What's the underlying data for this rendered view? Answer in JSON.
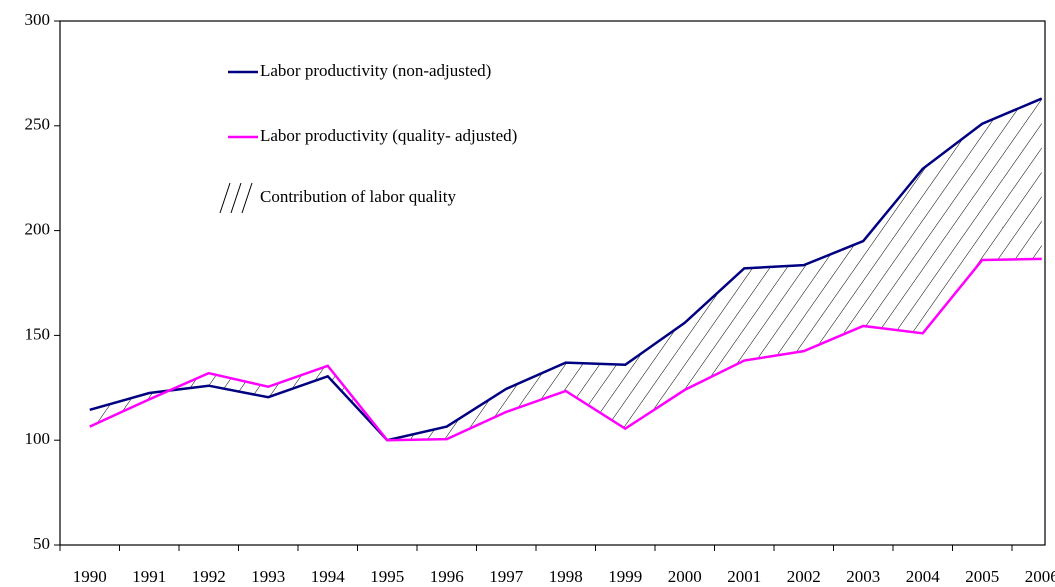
{
  "chart_data": {
    "type": "line",
    "categories": [
      "1990",
      "1991",
      "1992",
      "1993",
      "1994",
      "1995",
      "1996",
      "1997",
      "1998",
      "1999",
      "2000",
      "2001",
      "2002",
      "2003",
      "2004",
      "2005",
      "2006"
    ],
    "series": [
      {
        "name": "Labor productivity (non-adjusted)",
        "color": "#000080",
        "values": [
          114.5,
          122.5,
          126,
          120.5,
          130.5,
          100,
          106.5,
          124.5,
          137,
          136,
          156,
          182,
          183.5,
          195,
          229.5,
          251,
          263
        ]
      },
      {
        "name": "Labor productivity (quality- adjusted)",
        "color": "#ff00ff",
        "values": [
          106.5,
          119.5,
          132,
          125.5,
          135.5,
          100,
          100.5,
          113.5,
          123.5,
          105.5,
          124,
          138,
          142.5,
          154.5,
          151,
          186,
          186.5
        ]
      }
    ],
    "shaded_area": {
      "name": "Contribution of labor quality",
      "pattern": "hatch"
    },
    "ylim": [
      50,
      300
    ],
    "yticks": [
      50,
      100,
      150,
      200,
      250,
      300
    ],
    "grid": false
  }
}
